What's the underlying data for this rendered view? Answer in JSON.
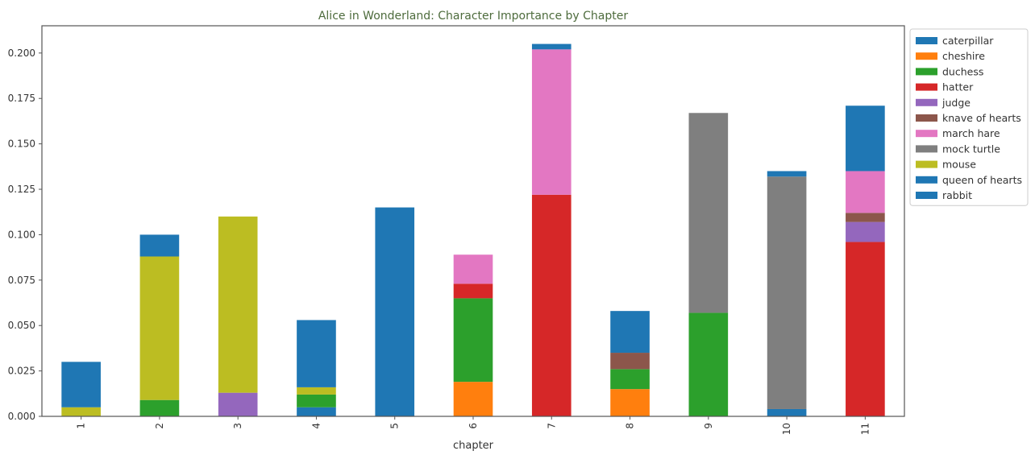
{
  "chart_data": {
    "type": "bar",
    "stacked": true,
    "title": "Alice in Wonderland: Character Importance by Chapter",
    "xlabel": "chapter",
    "ylabel": "",
    "categories": [
      "1",
      "2",
      "3",
      "4",
      "5",
      "6",
      "7",
      "8",
      "9",
      "10",
      "11"
    ],
    "ylim": [
      0,
      0.215
    ],
    "yticks": [
      0.0,
      0.025,
      0.05,
      0.075,
      0.1,
      0.125,
      0.15,
      0.175,
      0.2
    ],
    "ytick_labels": [
      "0.000",
      "0.025",
      "0.050",
      "0.075",
      "0.100",
      "0.125",
      "0.150",
      "0.175",
      "0.200"
    ],
    "grid": false,
    "legend_position": "outside-right",
    "series": [
      {
        "name": "caterpillar",
        "color": "#1f77b4",
        "values": [
          0,
          0,
          0,
          0.005,
          0.115,
          0,
          0,
          0,
          0,
          0.004,
          0
        ]
      },
      {
        "name": "cheshire",
        "color": "#ff7f0e",
        "values": [
          0,
          0,
          0,
          0,
          0,
          0.019,
          0,
          0.015,
          0,
          0,
          0
        ]
      },
      {
        "name": "duchess",
        "color": "#2ca02c",
        "values": [
          0,
          0.009,
          0,
          0.007,
          0,
          0.046,
          0,
          0.011,
          0.057,
          0,
          0
        ]
      },
      {
        "name": "hatter",
        "color": "#d62728",
        "values": [
          0,
          0,
          0,
          0,
          0,
          0.008,
          0.122,
          0,
          0,
          0,
          0.096
        ]
      },
      {
        "name": "judge",
        "color": "#9467bd",
        "values": [
          0,
          0,
          0.013,
          0,
          0,
          0,
          0,
          0,
          0,
          0,
          0.011
        ]
      },
      {
        "name": "knave of hearts",
        "color": "#8c564b",
        "values": [
          0,
          0,
          0,
          0,
          0,
          0,
          0,
          0.009,
          0,
          0,
          0.005
        ]
      },
      {
        "name": "march hare",
        "color": "#e377c2",
        "values": [
          0,
          0,
          0,
          0,
          0,
          0.016,
          0.08,
          0,
          0,
          0,
          0.023
        ]
      },
      {
        "name": "mock turtle",
        "color": "#7f7f7f",
        "values": [
          0,
          0,
          0,
          0,
          0,
          0,
          0,
          0,
          0.11,
          0.128,
          0
        ]
      },
      {
        "name": "mouse",
        "color": "#bcbd22",
        "values": [
          0.005,
          0.079,
          0.097,
          0.004,
          0,
          0,
          0,
          0,
          0,
          0,
          0
        ]
      },
      {
        "name": "queen of hearts",
        "color": "#1f77b4",
        "values": [
          0,
          0,
          0,
          0,
          0,
          0,
          0.003,
          0,
          0,
          0.003,
          0
        ]
      },
      {
        "name": "rabbit",
        "color": "#1f77b4",
        "values": [
          0.025,
          0.012,
          0,
          0.037,
          0,
          0,
          0,
          0.023,
          0,
          0,
          0.036
        ]
      }
    ]
  }
}
